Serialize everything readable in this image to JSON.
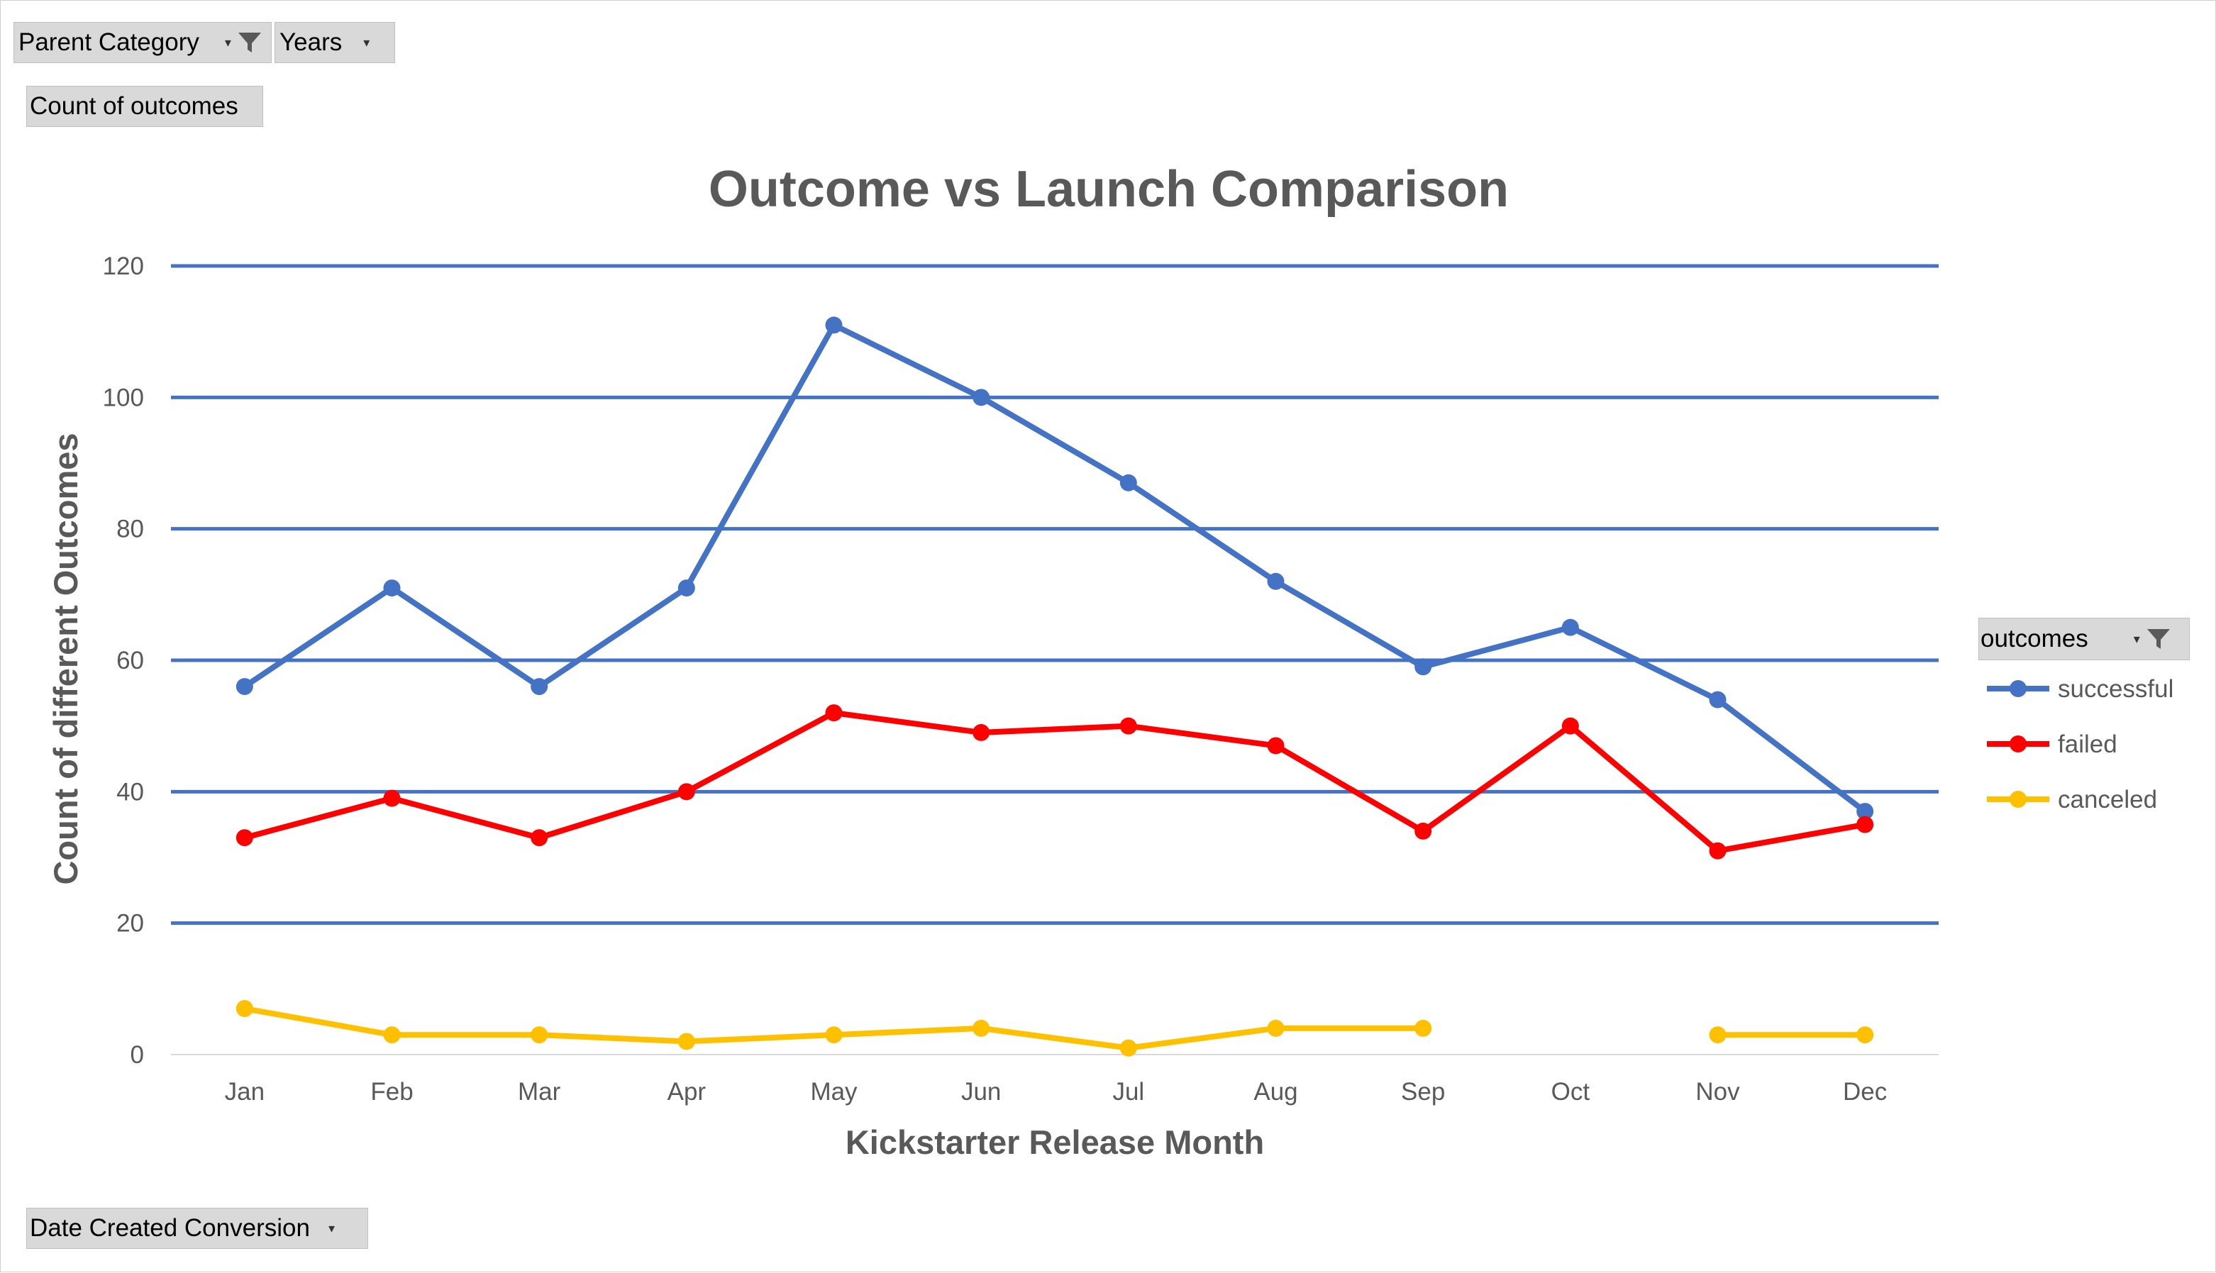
{
  "pivot_fields": {
    "parent_category": "Parent Category",
    "years": "Years",
    "count_of_outcomes": "Count of outcomes",
    "date_created": "Date Created Conversion",
    "legend_title": "outcomes"
  },
  "colors": {
    "successful": "#4472C4",
    "failed": "#FF0000",
    "canceled": "#FFC000",
    "gridline": "#4472C4",
    "title": "#595959"
  },
  "chart_data": {
    "type": "line",
    "title": "Outcome vs Launch Comparison",
    "xlabel": "Kickstarter Release Month",
    "ylabel": "Count of different Outcomes",
    "categories": [
      "Jan",
      "Feb",
      "Mar",
      "Apr",
      "May",
      "Jun",
      "Jul",
      "Aug",
      "Sep",
      "Oct",
      "Nov",
      "Dec"
    ],
    "ylim": [
      0,
      120
    ],
    "yticks": [
      0,
      20,
      40,
      60,
      80,
      100,
      120
    ],
    "grid": true,
    "legend_position": "right",
    "series": [
      {
        "name": "successful",
        "values": [
          56,
          71,
          56,
          71,
          111,
          100,
          87,
          72,
          59,
          65,
          54,
          37
        ]
      },
      {
        "name": "failed",
        "values": [
          33,
          39,
          33,
          40,
          52,
          49,
          50,
          47,
          34,
          50,
          31,
          35
        ]
      },
      {
        "name": "canceled",
        "values": [
          7,
          3,
          3,
          2,
          3,
          4,
          1,
          4,
          4,
          null,
          3,
          3
        ]
      }
    ]
  }
}
